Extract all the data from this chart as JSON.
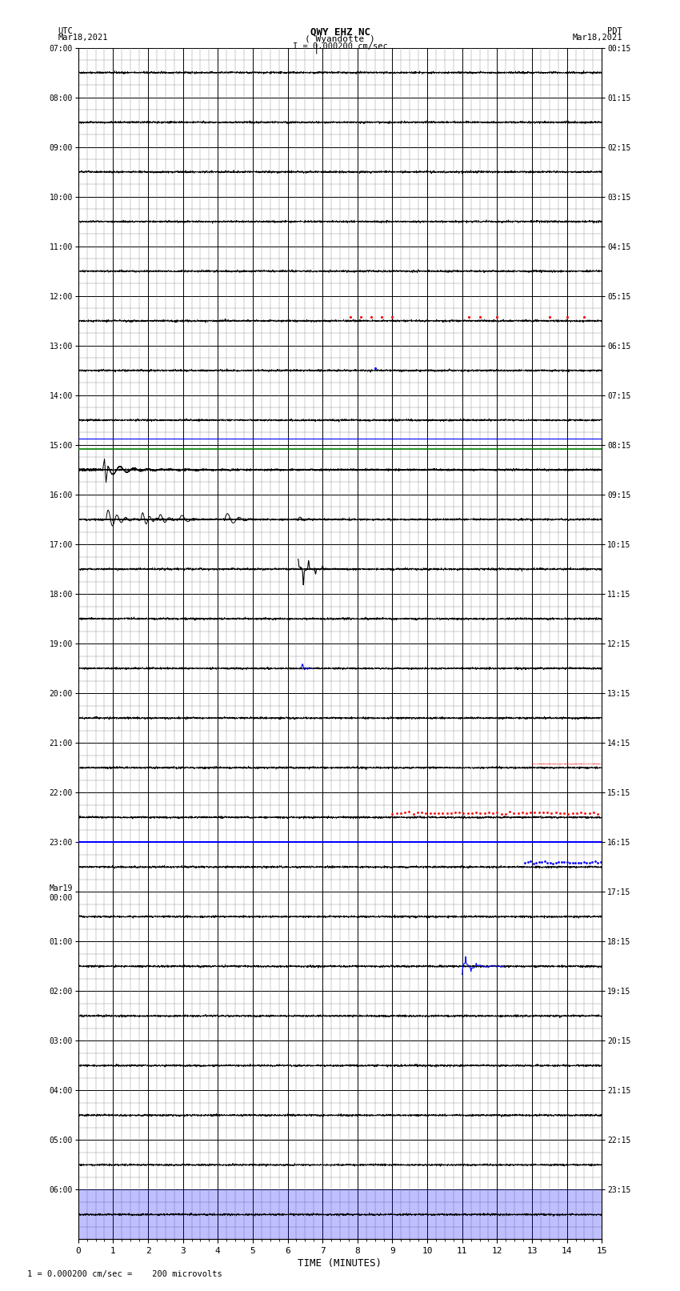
{
  "title_line1": "QWY EHZ NC",
  "title_line2": "( Wyandotte )",
  "scale_label": "I = 0.000200 cm/sec",
  "utc_label": "UTC",
  "utc_date": "Mar18,2021",
  "pdt_label": "PDT",
  "pdt_date": "Mar18,2021",
  "left_times": [
    "07:00",
    "08:00",
    "09:00",
    "10:00",
    "11:00",
    "12:00",
    "13:00",
    "14:00",
    "15:00",
    "16:00",
    "17:00",
    "18:00",
    "19:00",
    "20:00",
    "21:00",
    "22:00",
    "23:00",
    "Mar19\n00:00",
    "01:00",
    "02:00",
    "03:00",
    "04:00",
    "05:00",
    "06:00"
  ],
  "right_times": [
    "00:15",
    "01:15",
    "02:15",
    "03:15",
    "04:15",
    "05:15",
    "06:15",
    "07:15",
    "08:15",
    "09:15",
    "10:15",
    "11:15",
    "12:15",
    "13:15",
    "14:15",
    "15:15",
    "16:15",
    "17:15",
    "18:15",
    "19:15",
    "20:15",
    "21:15",
    "22:15",
    "23:15"
  ],
  "xlabel": "TIME (MINUTES)",
  "footer": "1 = 0.000200 cm/sec =    200 microvolts",
  "bg_color": "#ffffff",
  "major_grid_color": "#000000",
  "minor_grid_color": "#888888",
  "trace_color": "#000000",
  "blue_color": "#0000ff",
  "red_color": "#ff0000",
  "green_color": "#008000",
  "n_rows": 24,
  "x_min": 0,
  "x_max": 15,
  "sub_rows": 4
}
